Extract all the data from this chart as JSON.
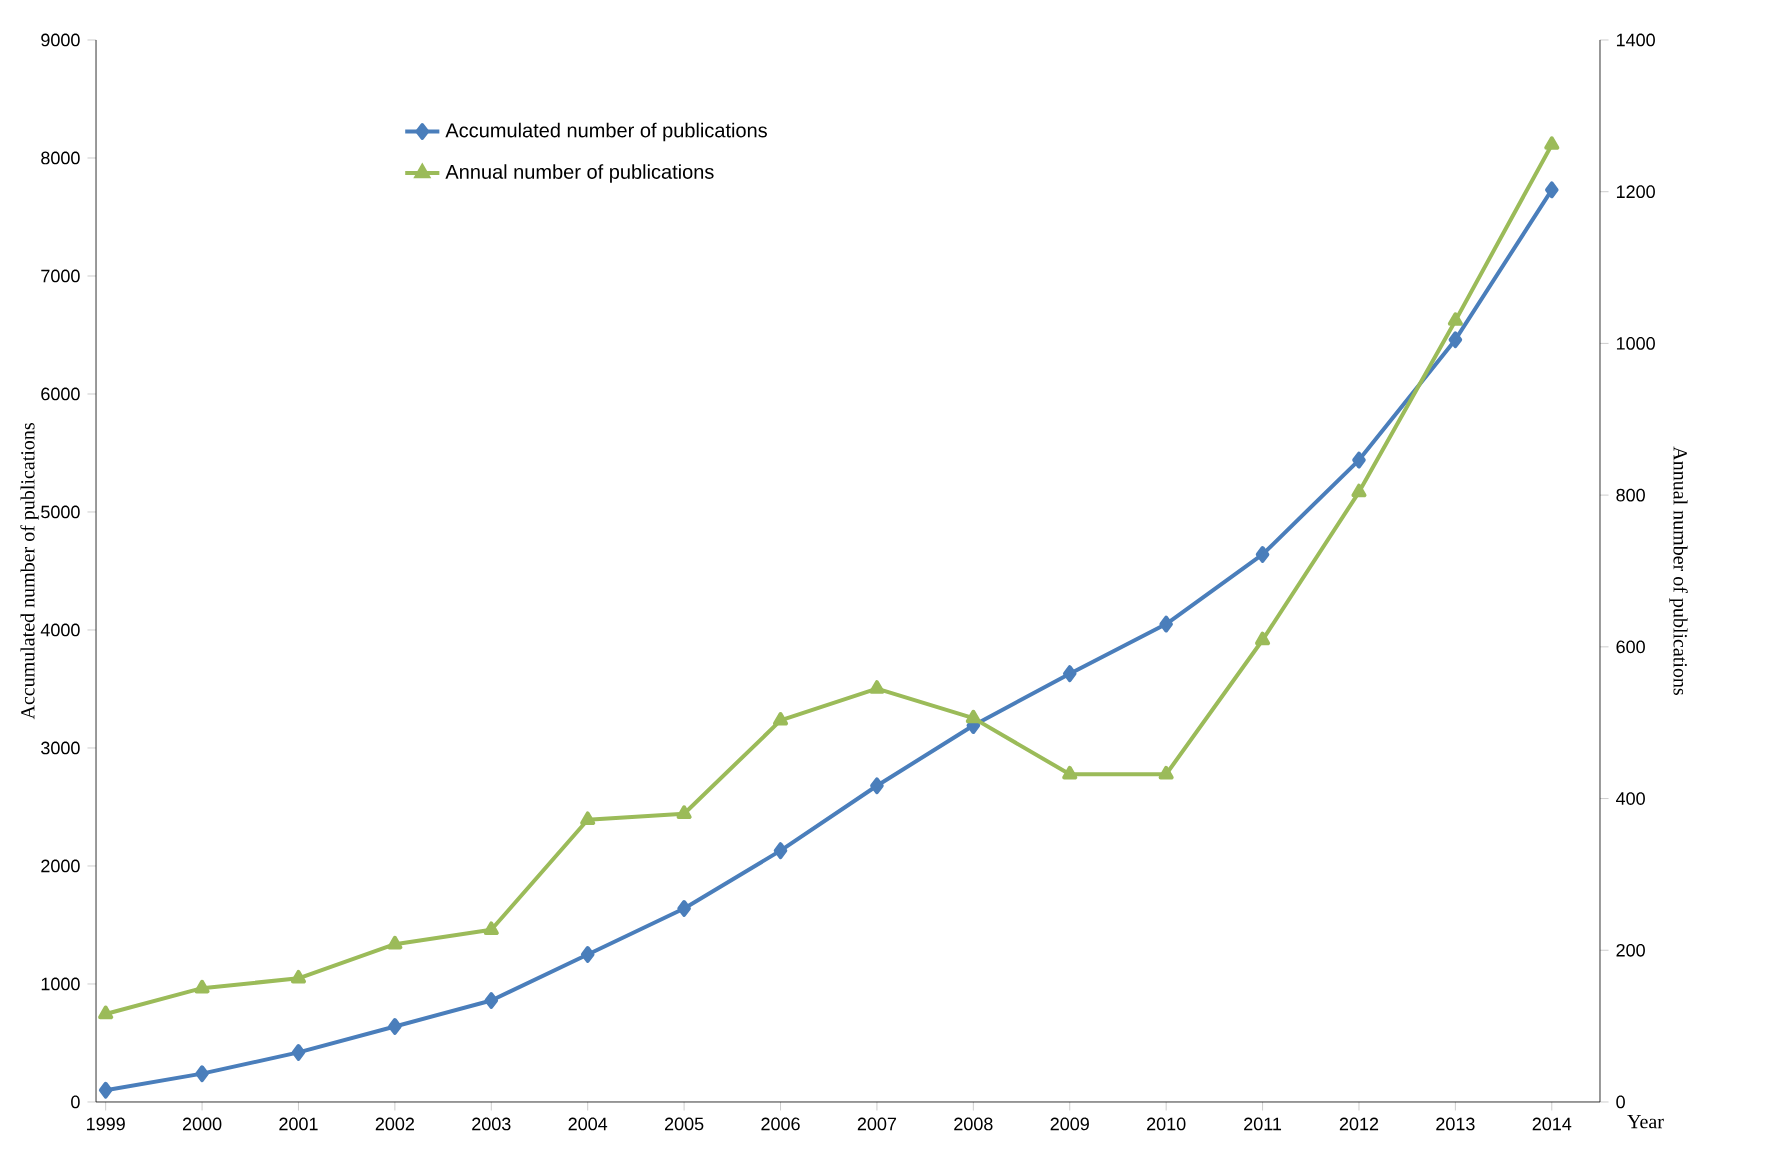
{
  "chart_data": {
    "type": "line",
    "xlabel": "Year",
    "ylabel": "Accumulated number of publications",
    "y2label": "Annual number of  publications",
    "categories": [
      "1999",
      "2000",
      "2001",
      "2002",
      "2003",
      "2004",
      "2005",
      "2006",
      "2007",
      "2008",
      "2009",
      "2010",
      "2011",
      "2012",
      "2013",
      "2014"
    ],
    "series": [
      {
        "name": "Accumulated number of publications",
        "color": "#4a7ebb",
        "marker": "diamond",
        "values": [
          100,
          240,
          420,
          640,
          860,
          1250,
          1640,
          2130,
          2680,
          3190,
          3630,
          4050,
          4640,
          5440,
          6460,
          7730
        ]
      },
      {
        "name": "Annual number of publications",
        "color": "#9bbb59",
        "marker": "triangle",
        "axis": "y2",
        "values": [
          116,
          150,
          163,
          208,
          227,
          372,
          380,
          503,
          545,
          506,
          432,
          432,
          609,
          804,
          1030,
          1262
        ]
      }
    ],
    "ylim": [
      0,
      9000
    ],
    "yticks": [
      0,
      1000,
      2000,
      3000,
      4000,
      5000,
      6000,
      7000,
      8000,
      9000
    ],
    "y2lim": [
      0,
      1400
    ],
    "y2ticks": [
      0,
      200,
      400,
      600,
      800,
      1000,
      1200,
      1400
    ],
    "legend": "top left",
    "grid": false
  }
}
